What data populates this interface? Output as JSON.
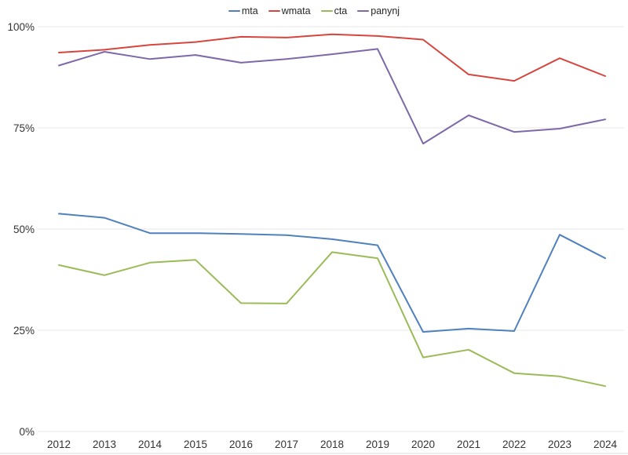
{
  "chart_data": {
    "type": "line",
    "title": "",
    "xlabel": "",
    "ylabel": "",
    "x": [
      2012,
      2013,
      2014,
      2015,
      2016,
      2017,
      2018,
      2019,
      2020,
      2021,
      2022,
      2023,
      2024
    ],
    "ylim": [
      0,
      100
    ],
    "yticks": [
      0,
      25,
      50,
      75,
      100
    ],
    "ytick_labels": [
      "0%",
      "25%",
      "50%",
      "75%",
      "100%"
    ],
    "grid": "horizontal",
    "legend_position": "top-center",
    "series": [
      {
        "name": "mta",
        "color": "#4f81bd",
        "values": [
          53.8,
          52.8,
          49.0,
          49.0,
          48.8,
          48.5,
          47.5,
          46.0,
          24.6,
          25.4,
          24.8,
          48.6,
          42.8
        ]
      },
      {
        "name": "wmata",
        "color": "#d6463e",
        "values": [
          93.6,
          94.3,
          95.5,
          96.2,
          97.5,
          97.3,
          98.1,
          97.7,
          96.8,
          88.2,
          86.6,
          92.2,
          87.8
        ]
      },
      {
        "name": "cta",
        "color": "#9bbb59",
        "values": [
          41.1,
          38.6,
          41.7,
          42.4,
          31.7,
          31.6,
          44.3,
          42.8,
          18.3,
          20.2,
          14.4,
          13.6,
          11.2
        ]
      },
      {
        "name": "panynj",
        "color": "#7e68a8",
        "values": [
          90.4,
          93.8,
          92.0,
          93.0,
          91.1,
          92.0,
          93.2,
          94.5,
          71.1,
          78.1,
          74.0,
          74.8,
          77.1
        ]
      }
    ],
    "colors": {
      "grid": "#ececec",
      "baseline": "#e4e4e4",
      "axis_text": "#333333",
      "background": "#ffffff"
    }
  }
}
